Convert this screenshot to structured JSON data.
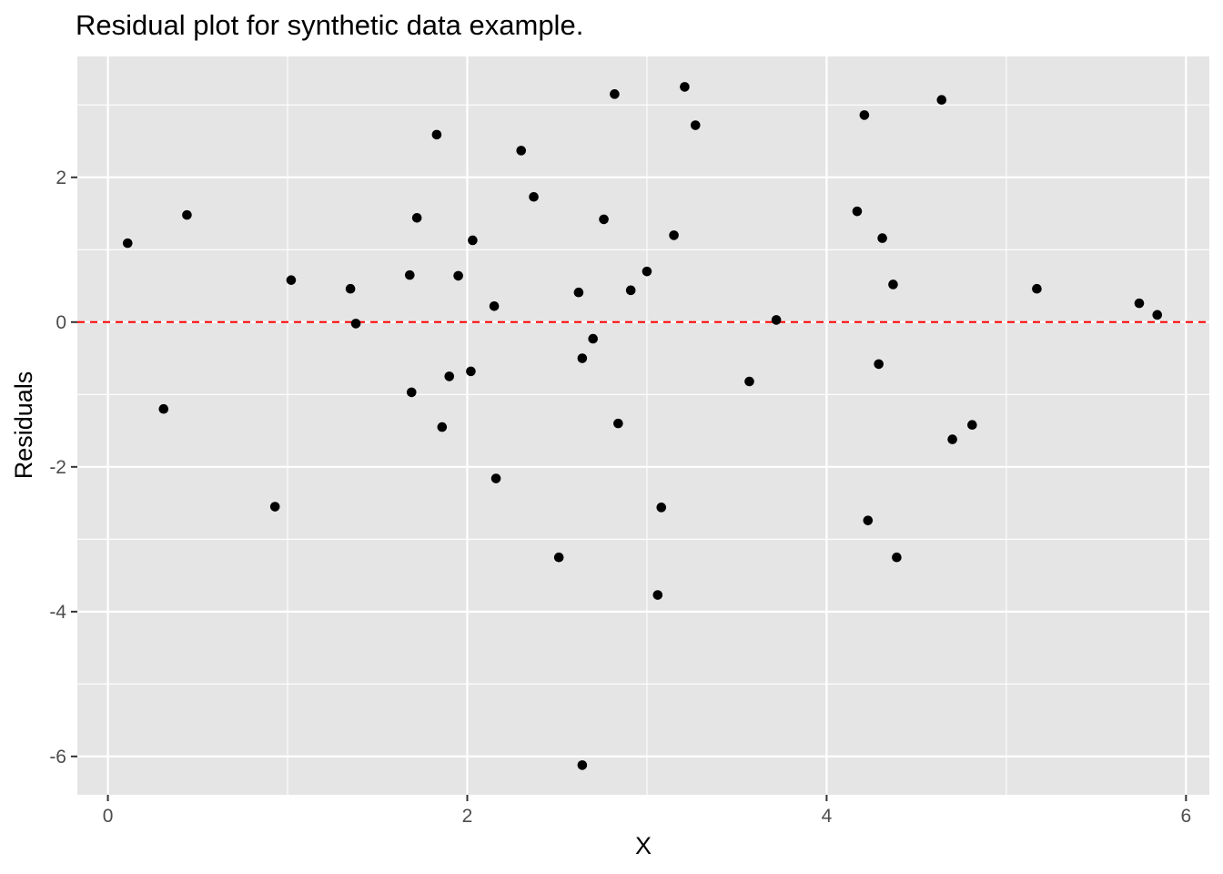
{
  "chart_data": {
    "type": "scatter",
    "title": "Residual plot for synthetic data example.",
    "xlabel": "X",
    "ylabel": "Residuals",
    "xlim": [
      -0.17,
      6.13
    ],
    "ylim": [
      -6.53,
      3.67
    ],
    "x_ticks": [
      0,
      2,
      4,
      6
    ],
    "y_ticks": [
      -6,
      -4,
      -2,
      0,
      2
    ],
    "x_tick_labels": [
      "0",
      "2",
      "4",
      "6"
    ],
    "y_tick_labels": [
      "-6",
      "-4",
      "-2",
      "0",
      "2"
    ],
    "grid": true,
    "reference_line": {
      "y": 0,
      "style": "dashed",
      "color": "#ff0000"
    },
    "colors": {
      "panel_background": "#e5e5e5",
      "grid": "#ffffff",
      "points": "#000000",
      "reference_line": "#ff0000"
    },
    "points": [
      {
        "x": 0.11,
        "y": 1.09
      },
      {
        "x": 0.31,
        "y": -1.2
      },
      {
        "x": 0.44,
        "y": 1.48
      },
      {
        "x": 0.93,
        "y": -2.55
      },
      {
        "x": 1.02,
        "y": 0.58
      },
      {
        "x": 1.35,
        "y": 0.46
      },
      {
        "x": 1.38,
        "y": -0.02
      },
      {
        "x": 1.68,
        "y": 0.65
      },
      {
        "x": 1.69,
        "y": -0.97
      },
      {
        "x": 1.72,
        "y": 1.44
      },
      {
        "x": 1.83,
        "y": 2.59
      },
      {
        "x": 1.86,
        "y": -1.45
      },
      {
        "x": 1.9,
        "y": -0.75
      },
      {
        "x": 1.95,
        "y": 0.64
      },
      {
        "x": 2.02,
        "y": -0.68
      },
      {
        "x": 2.03,
        "y": 1.13
      },
      {
        "x": 2.15,
        "y": 0.22
      },
      {
        "x": 2.16,
        "y": -2.16
      },
      {
        "x": 2.3,
        "y": 2.37
      },
      {
        "x": 2.37,
        "y": 1.73
      },
      {
        "x": 2.51,
        "y": -3.25
      },
      {
        "x": 2.62,
        "y": 0.41
      },
      {
        "x": 2.64,
        "y": -0.5
      },
      {
        "x": 2.64,
        "y": -6.12
      },
      {
        "x": 2.7,
        "y": -0.23
      },
      {
        "x": 2.76,
        "y": 1.42
      },
      {
        "x": 2.82,
        "y": 3.15
      },
      {
        "x": 2.84,
        "y": -1.4
      },
      {
        "x": 2.91,
        "y": 0.44
      },
      {
        "x": 3.0,
        "y": 0.7
      },
      {
        "x": 3.06,
        "y": -3.77
      },
      {
        "x": 3.08,
        "y": -2.56
      },
      {
        "x": 3.15,
        "y": 1.2
      },
      {
        "x": 3.21,
        "y": 3.25
      },
      {
        "x": 3.27,
        "y": 2.72
      },
      {
        "x": 3.57,
        "y": -0.82
      },
      {
        "x": 3.72,
        "y": 0.03
      },
      {
        "x": 4.17,
        "y": 1.53
      },
      {
        "x": 4.21,
        "y": 2.86
      },
      {
        "x": 4.23,
        "y": -2.74
      },
      {
        "x": 4.29,
        "y": -0.58
      },
      {
        "x": 4.31,
        "y": 1.16
      },
      {
        "x": 4.37,
        "y": 0.52
      },
      {
        "x": 4.39,
        "y": -3.25
      },
      {
        "x": 4.64,
        "y": 3.07
      },
      {
        "x": 4.7,
        "y": -1.62
      },
      {
        "x": 4.81,
        "y": -1.42
      },
      {
        "x": 5.17,
        "y": 0.46
      },
      {
        "x": 5.74,
        "y": 0.26
      },
      {
        "x": 5.84,
        "y": 0.1
      }
    ]
  }
}
